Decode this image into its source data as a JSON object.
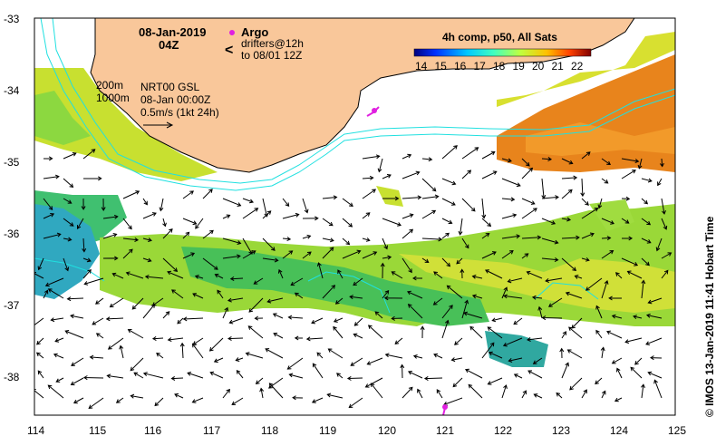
{
  "title": {
    "date": "08-Jan-2019",
    "time": "04Z"
  },
  "legend": {
    "argo_label": "Argo",
    "drifters_line1": "drifters@12h",
    "drifters_line2": "to 08/01 12Z",
    "argo_color": "#e020e0",
    "drifter_color": "#e020e0"
  },
  "isobaths": {
    "label_200": "200m",
    "label_1000": "1000m",
    "color": "#20e0e0"
  },
  "product": {
    "line1": "NRT00 GSL",
    "line2": "08-Jan 00:00Z",
    "line3": "0.5m/s (1kt 24h)"
  },
  "colorbar": {
    "title": "4h comp, p50, All Sats",
    "ticks": [
      "14",
      "15",
      "16",
      "17",
      "18",
      "19",
      "20",
      "21",
      "22"
    ],
    "min": 13.5,
    "max": 22.5,
    "colors": [
      "#00007f",
      "#0040ff",
      "#00c0ff",
      "#40ffbf",
      "#bfff40",
      "#ffc000",
      "#ff4000",
      "#7f0000"
    ]
  },
  "axes": {
    "lon_ticks": [
      "114",
      "115",
      "116",
      "117",
      "118",
      "119",
      "120",
      "121",
      "122",
      "123",
      "124",
      "125"
    ],
    "lat_ticks": [
      "-33",
      "-34",
      "-35",
      "-36",
      "-37",
      "-38"
    ],
    "lon_range": [
      114,
      125
    ],
    "lat_range": [
      -38.55,
      -33.0
    ]
  },
  "colors": {
    "land": "#f9c79a",
    "coast": "#000000",
    "sst_warm": "#e8841c",
    "sst_mid": "#b8e020",
    "sst_cool": "#30c060",
    "sst_cold": "#30a0c8"
  },
  "credit": "© IMOS 13-Jan-2019 11:41 Hobart Time"
}
